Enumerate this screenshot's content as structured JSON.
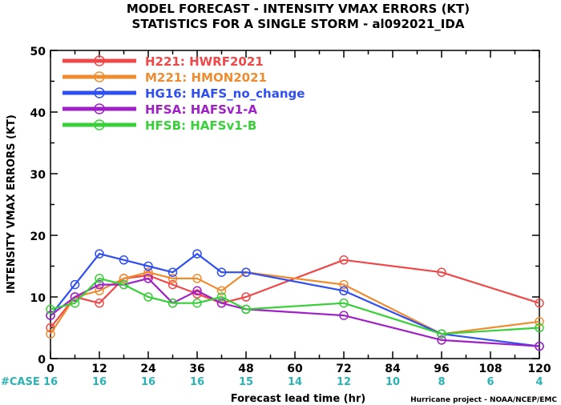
{
  "chart_data": {
    "type": "line",
    "title": "MODEL FORECAST - INTENSITY VMAX ERRORS (KT)",
    "subtitle": "STATISTICS FOR A SINGLE STORM - al092021_IDA",
    "xlabel": "Forecast lead time (hr)",
    "ylabel": "INTENSITY VMAX ERRORS (KT)",
    "xlim": [
      0,
      120
    ],
    "ylim": [
      0,
      50
    ],
    "x_ticks": [
      0,
      12,
      24,
      36,
      48,
      60,
      72,
      84,
      96,
      108,
      120
    ],
    "y_ticks": [
      0,
      10,
      20,
      30,
      40,
      50
    ],
    "grid": false,
    "legend_position": "top-left",
    "cases_label": "#CASE",
    "cases": [
      {
        "x": 0,
        "n": "16"
      },
      {
        "x": 12,
        "n": "16"
      },
      {
        "x": 24,
        "n": "16"
      },
      {
        "x": 36,
        "n": "16"
      },
      {
        "x": 48,
        "n": "15"
      },
      {
        "x": 60,
        "n": "14"
      },
      {
        "x": 72,
        "n": "12"
      },
      {
        "x": 84,
        "n": "10"
      },
      {
        "x": 96,
        "n": "8"
      },
      {
        "x": 108,
        "n": "6"
      },
      {
        "x": 120,
        "n": "4"
      }
    ],
    "series": [
      {
        "name": "H221: HWRF2021",
        "color": "#f04848",
        "x": [
          0,
          6,
          12,
          18,
          24,
          30,
          36,
          42,
          48,
          72,
          96,
          120
        ],
        "y": [
          5,
          10,
          9,
          13,
          13.5,
          12,
          10.5,
          9,
          10,
          16,
          14,
          9
        ]
      },
      {
        "name": "M221: HMON2021",
        "color": "#f08c30",
        "x": [
          0,
          6,
          12,
          18,
          24,
          30,
          36,
          42,
          48,
          72,
          96,
          120
        ],
        "y": [
          4,
          10,
          11,
          13,
          14,
          13,
          13,
          11,
          14,
          12,
          4,
          6
        ]
      },
      {
        "name": "HG16: HAFS_no_change",
        "color": "#2f4ff0",
        "x": [
          0,
          6,
          12,
          18,
          24,
          30,
          36,
          42,
          48,
          72,
          96,
          120
        ],
        "y": [
          7,
          12,
          17,
          16,
          15,
          14,
          17,
          14,
          14,
          11,
          4,
          2
        ]
      },
      {
        "name": "HFSA: HAFSv1-A",
        "color": "#a020c8",
        "x": [
          0,
          6,
          12,
          18,
          24,
          30,
          36,
          42,
          48,
          72,
          96,
          120
        ],
        "y": [
          7,
          10,
          12,
          12,
          13,
          9,
          11,
          9,
          8,
          7,
          3,
          2
        ]
      },
      {
        "name": "HFSB: HAFSv1-B",
        "color": "#38d038",
        "x": [
          0,
          6,
          12,
          18,
          24,
          30,
          36,
          42,
          48,
          72,
          96,
          120
        ],
        "y": [
          8,
          9,
          13,
          12,
          10,
          9,
          9,
          10,
          8,
          9,
          4,
          5
        ]
      }
    ],
    "credit": "Hurricane project - NOAA/NCEP/EMC"
  }
}
